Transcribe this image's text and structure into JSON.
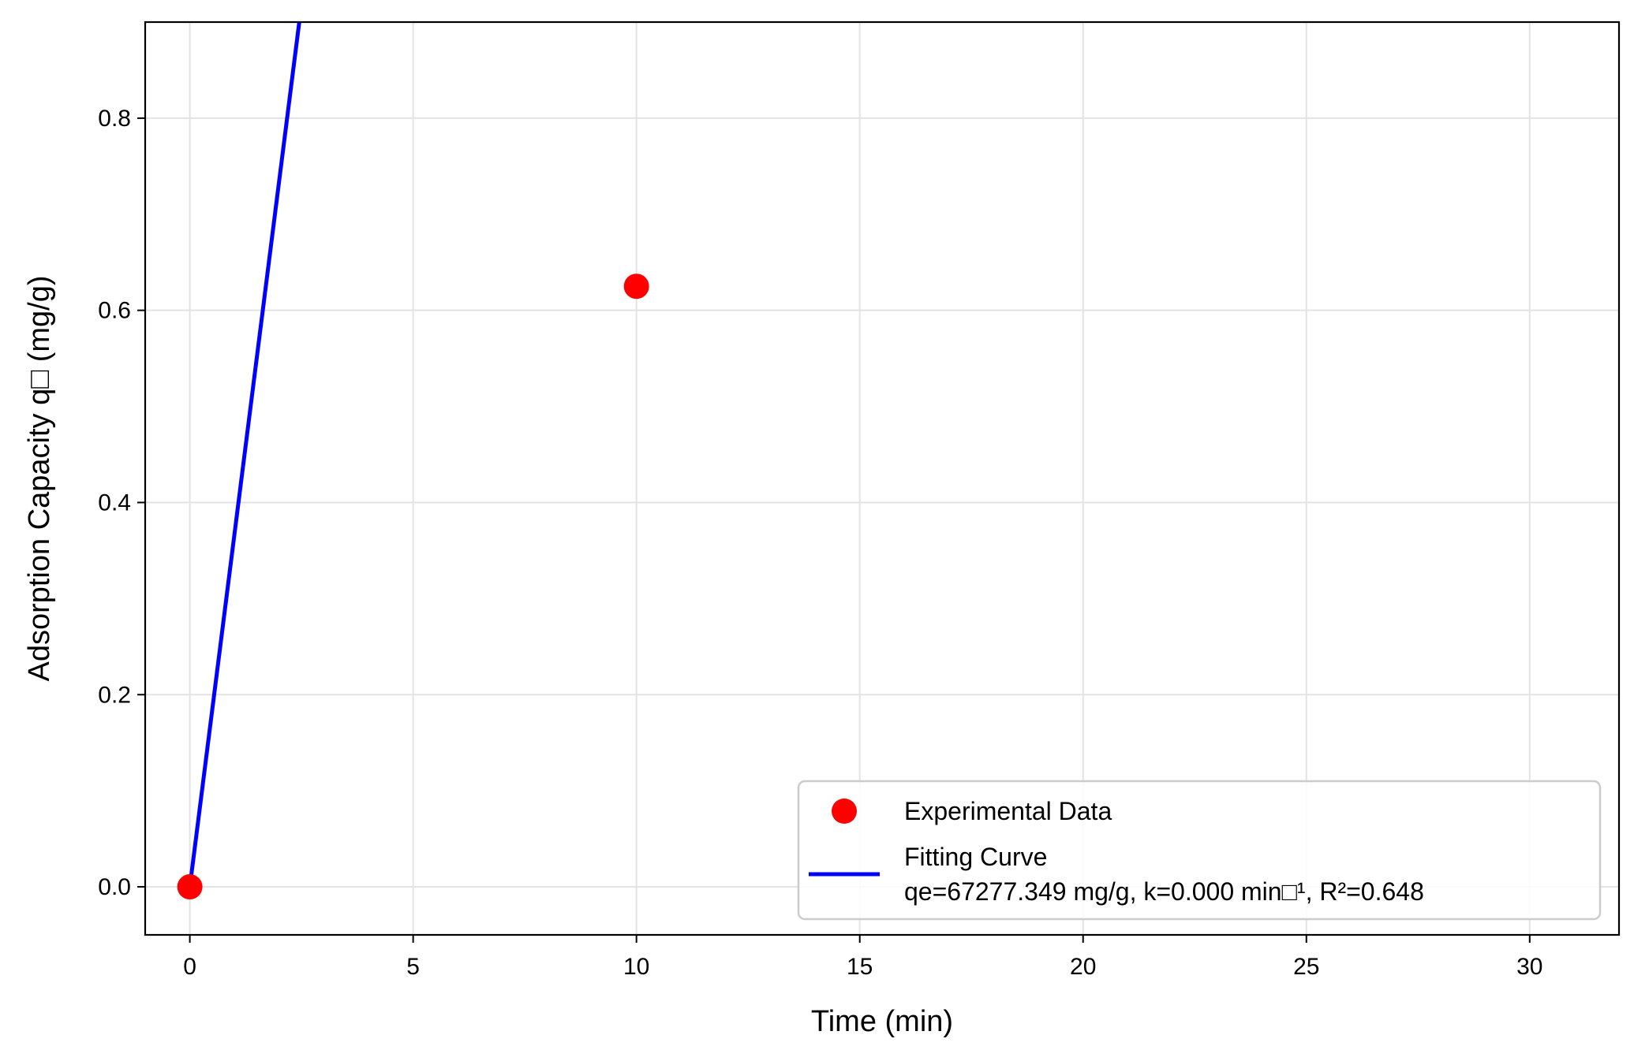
{
  "chart_data": {
    "type": "scatter",
    "title": "",
    "xlabel": "Time (min)",
    "ylabel": "Adsorption Capacity q□ (mg/g)",
    "xlim": [
      -1,
      32
    ],
    "ylim": [
      -0.05,
      0.9
    ],
    "xticks": [
      0,
      5,
      10,
      15,
      20,
      25,
      30
    ],
    "xtick_labels": [
      "0",
      "5",
      "10",
      "15",
      "20",
      "25",
      "30"
    ],
    "yticks": [
      0.0,
      0.2,
      0.4,
      0.6,
      0.8
    ],
    "ytick_labels": [
      "0.0",
      "0.2",
      "0.4",
      "0.6",
      "0.8"
    ],
    "grid": true,
    "legend_position": "lower-right",
    "series": [
      {
        "name": "Experimental Data",
        "kind": "scatter",
        "color": "#ff0000",
        "points": [
          {
            "x": 0,
            "y": 0.0
          },
          {
            "x": 10,
            "y": 0.625
          }
        ]
      },
      {
        "name": "Fitting Curve",
        "label_line2": "qe=67277.349 mg/g, k=0.000 min□¹, R²=0.648",
        "kind": "line",
        "color": "#0000ff",
        "points": [
          {
            "x": 0,
            "y": 0.0
          },
          {
            "x": 2.45,
            "y": 0.9
          }
        ]
      }
    ]
  }
}
